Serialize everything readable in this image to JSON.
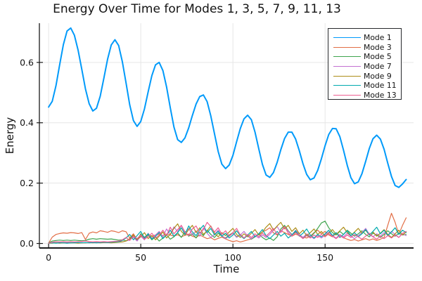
{
  "chart_data": {
    "type": "line",
    "title": "Energy Over Time for Modes 1, 3, 5, 7, 9, 11, 13",
    "xlabel": "Time",
    "ylabel": "Energy",
    "xlim": [
      -5,
      198
    ],
    "ylim": [
      -0.015,
      0.73
    ],
    "xticks": [
      0,
      50,
      100,
      150
    ],
    "xtick_labels": [
      "0",
      "50",
      "100",
      "150"
    ],
    "yticks": [
      0.0,
      0.2,
      0.4,
      0.6
    ],
    "ytick_labels": [
      "0.0",
      "0.2",
      "0.4",
      "0.6"
    ],
    "grid": true,
    "legend_position": "top-right",
    "axis_color": "#1a1a1a",
    "grid_color": "#e6e6e6",
    "x": [
      0,
      2,
      4,
      6,
      8,
      10,
      12,
      14,
      16,
      18,
      20,
      22,
      24,
      26,
      28,
      30,
      32,
      34,
      36,
      38,
      40,
      42,
      44,
      46,
      48,
      50,
      52,
      54,
      56,
      58,
      60,
      62,
      64,
      66,
      68,
      70,
      72,
      74,
      76,
      78,
      80,
      82,
      84,
      86,
      88,
      90,
      92,
      94,
      96,
      98,
      100,
      102,
      104,
      106,
      108,
      110,
      112,
      114,
      116,
      118,
      120,
      122,
      124,
      126,
      128,
      130,
      132,
      134,
      136,
      138,
      140,
      142,
      144,
      146,
      148,
      150,
      152,
      154,
      156,
      158,
      160,
      162,
      164,
      166,
      168,
      170,
      172,
      174,
      176,
      178,
      180,
      182,
      184,
      186,
      188,
      190,
      192,
      194
    ],
    "series": [
      {
        "name": "Mode 1",
        "color": "#009AFA",
        "line_width": 2,
        "values": [
          0.452,
          0.471,
          0.523,
          0.592,
          0.659,
          0.704,
          0.714,
          0.69,
          0.641,
          0.577,
          0.512,
          0.463,
          0.439,
          0.448,
          0.488,
          0.548,
          0.611,
          0.658,
          0.675,
          0.656,
          0.603,
          0.532,
          0.46,
          0.407,
          0.388,
          0.404,
          0.446,
          0.502,
          0.556,
          0.592,
          0.6,
          0.573,
          0.519,
          0.45,
          0.386,
          0.344,
          0.335,
          0.35,
          0.383,
          0.424,
          0.462,
          0.487,
          0.492,
          0.47,
          0.423,
          0.363,
          0.305,
          0.263,
          0.248,
          0.26,
          0.292,
          0.337,
          0.381,
          0.413,
          0.425,
          0.41,
          0.369,
          0.314,
          0.262,
          0.227,
          0.219,
          0.235,
          0.269,
          0.311,
          0.348,
          0.369,
          0.369,
          0.346,
          0.308,
          0.264,
          0.229,
          0.211,
          0.217,
          0.242,
          0.281,
          0.324,
          0.361,
          0.381,
          0.38,
          0.354,
          0.309,
          0.259,
          0.218,
          0.198,
          0.204,
          0.231,
          0.272,
          0.315,
          0.347,
          0.359,
          0.346,
          0.312,
          0.266,
          0.222,
          0.192,
          0.186,
          0.197,
          0.212
        ]
      },
      {
        "name": "Mode 3",
        "color": "#E26E46",
        "line_width": 1.2,
        "values": [
          0.001,
          0.021,
          0.03,
          0.033,
          0.035,
          0.034,
          0.036,
          0.035,
          0.033,
          0.036,
          0.013,
          0.034,
          0.038,
          0.035,
          0.042,
          0.04,
          0.037,
          0.042,
          0.04,
          0.036,
          0.042,
          0.039,
          0.018,
          0.032,
          0.013,
          0.027,
          0.021,
          0.03,
          0.024,
          0.028,
          0.031,
          0.026,
          0.031,
          0.028,
          0.024,
          0.029,
          0.022,
          0.027,
          0.031,
          0.024,
          0.02,
          0.028,
          0.022,
          0.016,
          0.019,
          0.012,
          0.017,
          0.021,
          0.015,
          0.01,
          0.006,
          0.009,
          0.005,
          0.008,
          0.012,
          0.015,
          0.022,
          0.03,
          0.038,
          0.044,
          0.052,
          0.035,
          0.028,
          0.042,
          0.036,
          0.03,
          0.024,
          0.031,
          0.026,
          0.021,
          0.018,
          0.024,
          0.036,
          0.044,
          0.032,
          0.04,
          0.028,
          0.022,
          0.034,
          0.026,
          0.019,
          0.014,
          0.01,
          0.013,
          0.008,
          0.012,
          0.016,
          0.011,
          0.015,
          0.01,
          0.014,
          0.02,
          0.06,
          0.1,
          0.07,
          0.03,
          0.06,
          0.085
        ]
      },
      {
        "name": "Mode 5",
        "color": "#3EA44E",
        "line_width": 1.2,
        "values": [
          0.002,
          0.008,
          0.01,
          0.011,
          0.01,
          0.011,
          0.01,
          0.011,
          0.01,
          0.009,
          0.01,
          0.014,
          0.016,
          0.014,
          0.016,
          0.015,
          0.014,
          0.015,
          0.013,
          0.011,
          0.012,
          0.009,
          0.014,
          0.025,
          0.01,
          0.032,
          0.015,
          0.028,
          0.012,
          0.022,
          0.008,
          0.018,
          0.028,
          0.014,
          0.022,
          0.035,
          0.02,
          0.04,
          0.024,
          0.032,
          0.018,
          0.038,
          0.026,
          0.044,
          0.03,
          0.02,
          0.034,
          0.024,
          0.018,
          0.028,
          0.036,
          0.022,
          0.03,
          0.018,
          0.026,
          0.014,
          0.022,
          0.032,
          0.02,
          0.012,
          0.018,
          0.01,
          0.022,
          0.048,
          0.06,
          0.042,
          0.03,
          0.038,
          0.026,
          0.018,
          0.028,
          0.022,
          0.034,
          0.05,
          0.068,
          0.074,
          0.052,
          0.036,
          0.028,
          0.04,
          0.03,
          0.044,
          0.034,
          0.024,
          0.032,
          0.042,
          0.03,
          0.022,
          0.034,
          0.028,
          0.02,
          0.03,
          0.042,
          0.032,
          0.024,
          0.034,
          0.028,
          0.03
        ]
      },
      {
        "name": "Mode 7",
        "color": "#C371D2",
        "line_width": 1.2,
        "values": [
          0.001,
          0.002,
          0.002,
          0.003,
          0.002,
          0.003,
          0.002,
          0.003,
          0.002,
          0.003,
          0.002,
          0.003,
          0.004,
          0.003,
          0.004,
          0.003,
          0.004,
          0.005,
          0.004,
          0.006,
          0.005,
          0.008,
          0.012,
          0.02,
          0.008,
          0.024,
          0.012,
          0.034,
          0.018,
          0.028,
          0.04,
          0.022,
          0.048,
          0.03,
          0.055,
          0.038,
          0.06,
          0.035,
          0.05,
          0.028,
          0.042,
          0.024,
          0.052,
          0.034,
          0.02,
          0.03,
          0.044,
          0.026,
          0.016,
          0.024,
          0.034,
          0.02,
          0.028,
          0.04,
          0.024,
          0.016,
          0.026,
          0.018,
          0.028,
          0.02,
          0.03,
          0.044,
          0.056,
          0.036,
          0.055,
          0.04,
          0.028,
          0.044,
          0.03,
          0.02,
          0.032,
          0.024,
          0.016,
          0.026,
          0.018,
          0.028,
          0.038,
          0.026,
          0.018,
          0.03,
          0.022,
          0.034,
          0.024,
          0.016,
          0.026,
          0.036,
          0.05,
          0.03,
          0.022,
          0.032,
          0.024,
          0.036,
          0.028,
          0.04,
          0.03,
          0.02,
          0.032,
          0.026
        ]
      },
      {
        "name": "Mode 9",
        "color": "#AC8E18",
        "line_width": 1.2,
        "values": [
          0.001,
          0.001,
          0.002,
          0.001,
          0.002,
          0.001,
          0.002,
          0.002,
          0.001,
          0.002,
          0.002,
          0.003,
          0.002,
          0.003,
          0.002,
          0.003,
          0.003,
          0.002,
          0.003,
          0.004,
          0.005,
          0.008,
          0.016,
          0.028,
          0.014,
          0.022,
          0.036,
          0.016,
          0.026,
          0.012,
          0.024,
          0.038,
          0.018,
          0.03,
          0.05,
          0.065,
          0.04,
          0.028,
          0.046,
          0.06,
          0.036,
          0.052,
          0.03,
          0.042,
          0.058,
          0.034,
          0.022,
          0.036,
          0.026,
          0.038,
          0.05,
          0.03,
          0.02,
          0.032,
          0.022,
          0.034,
          0.046,
          0.028,
          0.038,
          0.054,
          0.066,
          0.044,
          0.058,
          0.07,
          0.048,
          0.06,
          0.04,
          0.052,
          0.032,
          0.044,
          0.026,
          0.036,
          0.048,
          0.03,
          0.04,
          0.024,
          0.034,
          0.046,
          0.03,
          0.042,
          0.054,
          0.036,
          0.026,
          0.038,
          0.05,
          0.034,
          0.044,
          0.028,
          0.038,
          0.024,
          0.034,
          0.046,
          0.03,
          0.02,
          0.032,
          0.044,
          0.028,
          0.038
        ]
      },
      {
        "name": "Mode 11",
        "color": "#00AAAE",
        "line_width": 1.2,
        "values": [
          0.001,
          0.002,
          0.001,
          0.002,
          0.002,
          0.001,
          0.002,
          0.002,
          0.003,
          0.002,
          0.003,
          0.002,
          0.003,
          0.002,
          0.003,
          0.004,
          0.003,
          0.004,
          0.005,
          0.006,
          0.01,
          0.018,
          0.03,
          0.012,
          0.026,
          0.04,
          0.018,
          0.032,
          0.014,
          0.024,
          0.036,
          0.016,
          0.028,
          0.044,
          0.024,
          0.036,
          0.052,
          0.03,
          0.058,
          0.038,
          0.026,
          0.046,
          0.06,
          0.036,
          0.05,
          0.028,
          0.04,
          0.024,
          0.034,
          0.018,
          0.028,
          0.042,
          0.026,
          0.016,
          0.028,
          0.04,
          0.022,
          0.032,
          0.046,
          0.026,
          0.016,
          0.028,
          0.04,
          0.024,
          0.034,
          0.018,
          0.028,
          0.042,
          0.024,
          0.034,
          0.048,
          0.028,
          0.018,
          0.03,
          0.022,
          0.032,
          0.044,
          0.026,
          0.036,
          0.02,
          0.03,
          0.042,
          0.026,
          0.036,
          0.022,
          0.032,
          0.046,
          0.028,
          0.04,
          0.054,
          0.032,
          0.044,
          0.026,
          0.038,
          0.052,
          0.03,
          0.044,
          0.036
        ]
      },
      {
        "name": "Mode 13",
        "color": "#ED5E92",
        "line_width": 1.2,
        "values": [
          0.001,
          0.004,
          0.006,
          0.005,
          0.006,
          0.005,
          0.006,
          0.005,
          0.006,
          0.007,
          0.008,
          0.006,
          0.005,
          0.006,
          0.005,
          0.006,
          0.005,
          0.006,
          0.007,
          0.008,
          0.012,
          0.02,
          0.01,
          0.024,
          0.016,
          0.028,
          0.014,
          0.022,
          0.034,
          0.018,
          0.028,
          0.044,
          0.026,
          0.054,
          0.032,
          0.046,
          0.06,
          0.038,
          0.026,
          0.048,
          0.058,
          0.034,
          0.046,
          0.07,
          0.056,
          0.038,
          0.052,
          0.03,
          0.042,
          0.024,
          0.036,
          0.05,
          0.028,
          0.018,
          0.03,
          0.02,
          0.032,
          0.022,
          0.034,
          0.024,
          0.036,
          0.05,
          0.03,
          0.04,
          0.056,
          0.034,
          0.024,
          0.036,
          0.026,
          0.016,
          0.026,
          0.018,
          0.028,
          0.02,
          0.03,
          0.022,
          0.032,
          0.024,
          0.016,
          0.026,
          0.018,
          0.028,
          0.02,
          0.03,
          0.022,
          0.014,
          0.024,
          0.034,
          0.022,
          0.014,
          0.024,
          0.016,
          0.026,
          0.018,
          0.028,
          0.02,
          0.034,
          0.04
        ]
      }
    ]
  }
}
